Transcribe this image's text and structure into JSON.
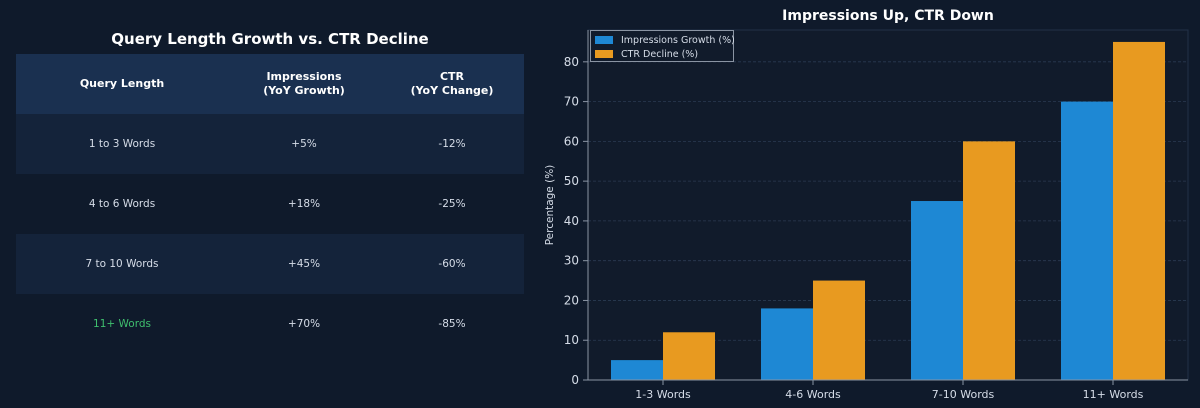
{
  "table": {
    "title": "Query Length Growth vs. CTR Decline",
    "headers": {
      "col1": "Query Length",
      "col2_line1": "Impressions",
      "col2_line2": "(YoY Growth)",
      "col3_line1": "CTR",
      "col3_line2": "(YoY Change)"
    },
    "rows": [
      {
        "length": "1 to 3 Words",
        "impressions": "+5%",
        "ctr": "-12%"
      },
      {
        "length": "4 to 6 Words",
        "impressions": "+18%",
        "ctr": "-25%"
      },
      {
        "length": "7 to 10 Words",
        "impressions": "+45%",
        "ctr": "-60%"
      },
      {
        "length": "11+ Words",
        "impressions": "+70%",
        "ctr": "-85%"
      }
    ]
  },
  "colors": {
    "background": "#0f1a2b",
    "header_row": "#1a3050",
    "band_row": "#14233a",
    "positive": "#3fbf6e",
    "negative": "#e84c4c",
    "impressions_bar": "#1e88d4",
    "ctr_bar": "#e89a20"
  },
  "chart_data": {
    "type": "bar",
    "title": "Impressions Up, CTR Down",
    "xlabel": "",
    "ylabel": "Percentage (%)",
    "categories": [
      "1-3 Words",
      "4-6 Words",
      "7-10 Words",
      "11+ Words"
    ],
    "series": [
      {
        "name": "Impressions Growth (%)",
        "values": [
          5,
          18,
          45,
          70
        ]
      },
      {
        "name": "CTR Decline (%)",
        "values": [
          12,
          25,
          60,
          85
        ]
      }
    ],
    "ylim": [
      0,
      88
    ],
    "yticks": [
      0,
      10,
      20,
      30,
      40,
      50,
      60,
      70,
      80
    ],
    "grid": true,
    "legend": "top-left"
  }
}
